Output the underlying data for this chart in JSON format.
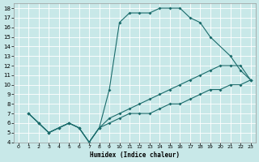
{
  "xlabel": "Humidex (Indice chaleur)",
  "bg_color": "#c8e8e8",
  "grid_color": "#ffffff",
  "line_color": "#1a6b6b",
  "xlim_min": -0.5,
  "xlim_max": 23.5,
  "ylim_min": 4,
  "ylim_max": 18.5,
  "xticks": [
    0,
    1,
    2,
    3,
    4,
    5,
    6,
    7,
    8,
    9,
    10,
    11,
    12,
    13,
    14,
    15,
    16,
    17,
    18,
    19,
    20,
    21,
    22,
    23
  ],
  "yticks": [
    4,
    5,
    6,
    7,
    8,
    9,
    10,
    11,
    12,
    13,
    14,
    15,
    16,
    17,
    18
  ],
  "line1_x": [
    1,
    2,
    3,
    4,
    5,
    6,
    7,
    8,
    9,
    10,
    11,
    12,
    13,
    14,
    15,
    16,
    17,
    18,
    19,
    21,
    22,
    23
  ],
  "line1_y": [
    7,
    6,
    5,
    5.5,
    6,
    5.5,
    4,
    5.5,
    9.5,
    16.5,
    17.5,
    17.5,
    17.5,
    18,
    18,
    18,
    17,
    16.5,
    15,
    13,
    11.5,
    10.5
  ],
  "line2_x": [
    1,
    2,
    3,
    4,
    5,
    6,
    7,
    8,
    9,
    10,
    11,
    12,
    13,
    14,
    15,
    16,
    17,
    18,
    19,
    20,
    21,
    22,
    23
  ],
  "line2_y": [
    7,
    6,
    5,
    5.5,
    6,
    5.5,
    4,
    5.5,
    6.5,
    7,
    7.5,
    8,
    8.5,
    9,
    9.5,
    10,
    10.5,
    11,
    11.5,
    12,
    12,
    12,
    10.5
  ],
  "line3_x": [
    1,
    2,
    3,
    4,
    5,
    6,
    7,
    8,
    9,
    10,
    11,
    12,
    13,
    14,
    15,
    16,
    17,
    18,
    19,
    20,
    21,
    22,
    23
  ],
  "line3_y": [
    7,
    6,
    5,
    5.5,
    6,
    5.5,
    4,
    5.5,
    6,
    6.5,
    7,
    7,
    7,
    7.5,
    8,
    8,
    8.5,
    9,
    9.5,
    9.5,
    10,
    10,
    10.5
  ]
}
